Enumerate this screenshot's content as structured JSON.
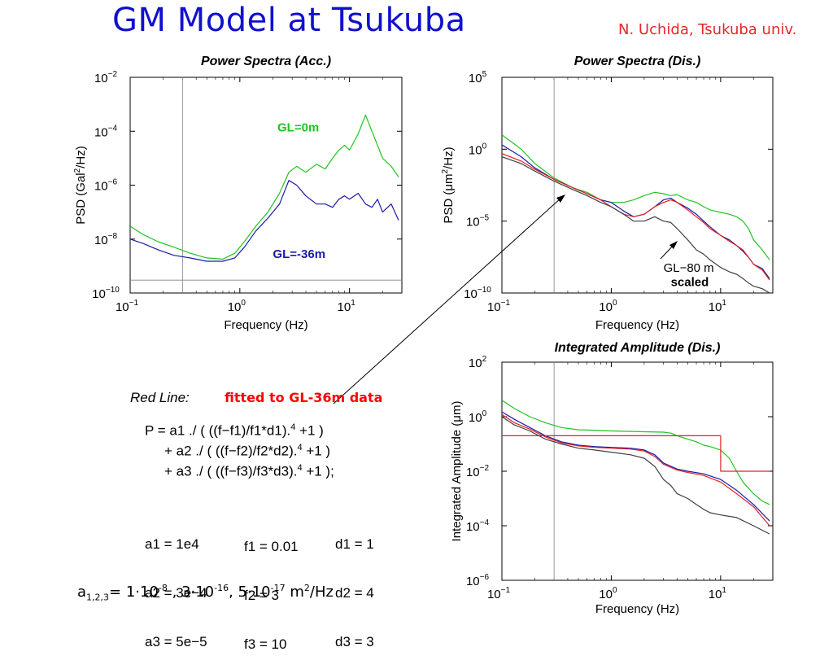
{
  "title": "GM Model at Tsukuba",
  "author": "N. Uchida, Tsukuba univ.",
  "colors": {
    "title": "#1010d0",
    "author": "#e8262a",
    "green": "#1ec51e",
    "blue": "#1a1aa8",
    "red": "#e82020",
    "gray": "#404040"
  },
  "chart_data": [
    {
      "type": "line",
      "title": "Power Spectra (Acc.)",
      "xlabel": "Frequency (Hz)",
      "ylabel_main": "PSD (Gal",
      "ylabel_sup": "2",
      "ylabel_tail": "/Hz)",
      "xscale": "log",
      "yscale": "log",
      "xlim": [
        0.1,
        30
      ],
      "ylim": [
        1e-10,
        0.01
      ],
      "xticks": [
        {
          "v": 0.1,
          "base": "10",
          "exp": "−1"
        },
        {
          "v": 1,
          "base": "10",
          "exp": "0"
        },
        {
          "v": 10,
          "base": "10",
          "exp": "1"
        }
      ],
      "yticks": [
        {
          "v": 1e-10,
          "base": "10",
          "exp": "−10"
        },
        {
          "v": 1e-08,
          "base": "10",
          "exp": "−8"
        },
        {
          "v": 1e-06,
          "base": "10",
          "exp": "−6"
        },
        {
          "v": 0.0001,
          "base": "10",
          "exp": "−4"
        },
        {
          "v": 0.01,
          "base": "10",
          "exp": "−2"
        }
      ],
      "vline_x": 0.3,
      "hline_y": 3e-10,
      "annotations": [
        {
          "text": "GL=0m",
          "x": 2.2,
          "y": 0.0001,
          "color": "#1ec51e"
        },
        {
          "text": "GL=-36m",
          "x": 2.0,
          "y": 2e-09,
          "color": "#1a1aa8"
        }
      ],
      "series": [
        {
          "label": "GL=0m",
          "color": "#1ec51e",
          "x": [
            0.1,
            0.13,
            0.18,
            0.25,
            0.35,
            0.5,
            0.7,
            0.9,
            1.1,
            1.4,
            1.8,
            2.3,
            2.8,
            3.3,
            4,
            5,
            6,
            7,
            8,
            9,
            10,
            12,
            14,
            16,
            18,
            20,
            24,
            28
          ],
          "y": [
            3e-08,
            1.5e-08,
            8e-09,
            5e-09,
            3e-09,
            2e-09,
            1.8e-09,
            3e-09,
            8e-09,
            3e-08,
            1e-07,
            5e-07,
            3e-06,
            5e-06,
            3e-06,
            6e-06,
            4e-06,
            1e-05,
            2e-05,
            3e-05,
            2e-05,
            8e-05,
            0.0004,
            0.0001,
            3e-05,
            1e-05,
            5e-06,
            2e-06
          ]
        },
        {
          "color": "#1a1aa8",
          "x": [
            0.1,
            0.13,
            0.18,
            0.25,
            0.35,
            0.5,
            0.7,
            0.9,
            1.1,
            1.4,
            1.8,
            2.3,
            2.8,
            3.3,
            4,
            5,
            6,
            7,
            8,
            9,
            10,
            12,
            14,
            16,
            18,
            20,
            24,
            28
          ],
          "y": [
            1e-08,
            7e-09,
            4e-09,
            2.5e-09,
            2e-09,
            1.5e-09,
            1.5e-09,
            2e-09,
            5e-09,
            2e-08,
            6e-08,
            2e-07,
            1.5e-06,
            1e-06,
            4e-07,
            2e-07,
            2e-07,
            1.5e-07,
            3e-07,
            4e-07,
            3e-07,
            5e-07,
            2e-07,
            1.5e-07,
            3e-07,
            1e-07,
            2e-07,
            5e-08
          ]
        }
      ]
    },
    {
      "type": "line",
      "title": "Power Spectra (Dis.)",
      "xlabel": "Frequency (Hz)",
      "ylabel_main": "PSD (μm",
      "ylabel_sup": "2",
      "ylabel_tail": "/Hz)",
      "xscale": "log",
      "yscale": "log",
      "xlim": [
        0.1,
        30
      ],
      "ylim": [
        1e-10,
        100000
      ],
      "xticks": [
        {
          "v": 0.1,
          "base": "10",
          "exp": "−1"
        },
        {
          "v": 1,
          "base": "10",
          "exp": "0"
        },
        {
          "v": 10,
          "base": "10",
          "exp": "1"
        }
      ],
      "yticks": [
        {
          "v": 1e-10,
          "base": "10",
          "exp": "−10"
        },
        {
          "v": 1e-05,
          "base": "10",
          "exp": "−5"
        },
        {
          "v": 1,
          "base": "10",
          "exp": "0"
        },
        {
          "v": 100000,
          "base": "10",
          "exp": "5"
        }
      ],
      "vline_x": 0.3,
      "annotations": [
        {
          "text": "GL−80 m",
          "x": 3.0,
          "y": 3e-09,
          "color": "#000000"
        },
        {
          "text": "scaled",
          "x": 3.5,
          "y": 3e-10,
          "color": "#000000"
        }
      ],
      "series": [
        {
          "color": "#1ec51e",
          "x": [
            0.1,
            0.15,
            0.2,
            0.3,
            0.45,
            0.6,
            0.8,
            1,
            1.3,
            1.6,
            2,
            2.5,
            3,
            3.5,
            4,
            5,
            6,
            7,
            8,
            10,
            12,
            14,
            16,
            18,
            20,
            24,
            28
          ],
          "y": [
            10,
            1,
            0.1,
            0.01,
            0.002,
            0.001,
            0.0003,
            0.0002,
            0.0002,
            0.0003,
            0.0006,
            0.001,
            0.0008,
            0.0006,
            0.0007,
            0.0003,
            0.0002,
            0.0001,
            6e-05,
            4e-05,
            3e-05,
            2e-05,
            1e-05,
            3e-06,
            5e-07,
            1e-07,
            2e-08
          ]
        },
        {
          "color": "#1a1aa8",
          "x": [
            0.1,
            0.15,
            0.2,
            0.3,
            0.45,
            0.6,
            0.8,
            1,
            1.3,
            1.6,
            2,
            2.5,
            3,
            3.5,
            4,
            5,
            6,
            7,
            8,
            10,
            12,
            14,
            16,
            18,
            20,
            24,
            28
          ],
          "y": [
            2,
            0.3,
            0.05,
            0.008,
            0.002,
            0.0008,
            0.0003,
            0.0002,
            5e-05,
            2e-05,
            3e-05,
            0.0001,
            0.0003,
            0.0004,
            0.0002,
            8e-05,
            3e-05,
            1e-05,
            4e-06,
            1e-06,
            5e-07,
            2e-07,
            8e-08,
            3e-08,
            1e-08,
            5e-09,
            1e-09
          ]
        },
        {
          "color": "#e82020",
          "x": [
            0.1,
            0.15,
            0.2,
            0.3,
            0.45,
            0.6,
            0.8,
            1,
            1.3,
            1.6,
            2,
            2.5,
            3,
            3.5,
            4,
            5,
            6,
            7,
            8,
            10,
            12,
            14,
            16,
            18,
            20,
            24,
            28
          ],
          "y": [
            0.5,
            0.15,
            0.04,
            0.008,
            0.002,
            0.0008,
            0.0003,
            0.0001,
            3e-05,
            2e-05,
            3e-05,
            0.0001,
            0.0002,
            0.0003,
            0.0002,
            6e-05,
            2e-05,
            8e-06,
            3e-06,
            1e-06,
            4e-07,
            2e-07,
            1e-07,
            3e-08,
            1e-08,
            4e-09,
            8e-10
          ]
        },
        {
          "color": "#404040",
          "x": [
            0.1,
            0.15,
            0.2,
            0.3,
            0.45,
            0.6,
            0.8,
            1,
            1.3,
            1.6,
            2,
            2.5,
            3,
            3.5,
            4,
            5,
            6,
            7,
            8,
            10,
            12,
            14,
            16,
            18,
            20,
            24,
            28
          ],
          "y": [
            0.3,
            0.1,
            0.03,
            0.006,
            0.0015,
            0.0006,
            0.0002,
            0.0001,
            3e-05,
            1e-05,
            1e-05,
            2e-05,
            1e-05,
            8e-06,
            3e-06,
            5e-07,
            1e-07,
            5e-08,
            2e-08,
            6e-09,
            3e-09,
            2e-09,
            1e-09,
            5e-10,
            3e-10,
            2e-10,
            1e-10
          ]
        }
      ]
    },
    {
      "type": "line",
      "title": "Integrated Amplitude (Dis.)",
      "xlabel": "Frequency (Hz)",
      "ylabel_main": "Integrated Amplitude (μm)",
      "ylabel_sup": "",
      "ylabel_tail": "",
      "xscale": "log",
      "yscale": "log",
      "xlim": [
        0.1,
        30
      ],
      "ylim": [
        1e-06,
        100
      ],
      "xticks": [
        {
          "v": 0.1,
          "base": "10",
          "exp": "−1"
        },
        {
          "v": 1,
          "base": "10",
          "exp": "0"
        },
        {
          "v": 10,
          "base": "10",
          "exp": "1"
        }
      ],
      "yticks": [
        {
          "v": 1e-06,
          "base": "10",
          "exp": "−6"
        },
        {
          "v": 0.0001,
          "base": "10",
          "exp": "−4"
        },
        {
          "v": 0.01,
          "base": "10",
          "exp": "−2"
        },
        {
          "v": 1,
          "base": "10",
          "exp": "0"
        },
        {
          "v": 100,
          "base": "10",
          "exp": "2"
        }
      ],
      "vline_x": 0.3,
      "annotations": [],
      "series": [
        {
          "color": "#1ec51e",
          "x": [
            0.1,
            0.13,
            0.18,
            0.25,
            0.35,
            0.5,
            0.7,
            1,
            2,
            3,
            3.5,
            4,
            5,
            6,
            7,
            8,
            10,
            12,
            14,
            16,
            20,
            24,
            28
          ],
          "y": [
            4,
            2,
            1,
            0.6,
            0.4,
            0.33,
            0.32,
            0.3,
            0.28,
            0.27,
            0.25,
            0.2,
            0.15,
            0.12,
            0.09,
            0.08,
            0.06,
            0.03,
            0.01,
            0.004,
            0.0015,
            0.0008,
            0.0006
          ]
        },
        {
          "color": "#1a1aa8",
          "x": [
            0.1,
            0.13,
            0.18,
            0.25,
            0.35,
            0.5,
            0.7,
            1,
            1.5,
            2,
            2.5,
            3,
            4,
            5,
            7,
            10,
            14,
            20,
            28
          ],
          "y": [
            1.5,
            0.8,
            0.4,
            0.2,
            0.12,
            0.09,
            0.08,
            0.075,
            0.07,
            0.06,
            0.04,
            0.02,
            0.012,
            0.01,
            0.008,
            0.005,
            0.002,
            0.0006,
            0.00015
          ]
        },
        {
          "color": "#e82020",
          "x": [
            0.1,
            0.13,
            0.18,
            0.25,
            0.35,
            0.5,
            0.7,
            1,
            1.5,
            2,
            2.5,
            3,
            4,
            5,
            7,
            10,
            14,
            20,
            28
          ],
          "y": [
            1.2,
            0.6,
            0.35,
            0.18,
            0.11,
            0.085,
            0.075,
            0.07,
            0.065,
            0.055,
            0.035,
            0.018,
            0.011,
            0.009,
            0.007,
            0.004,
            0.0015,
            0.0005,
            0.0001
          ]
        },
        {
          "color": "#e82020",
          "x": [
            0.1,
            10,
            10,
            28
          ],
          "y": [
            0.2,
            0.2,
            0.01,
            0.01
          ]
        },
        {
          "color": "#404040",
          "x": [
            0.1,
            0.13,
            0.18,
            0.25,
            0.35,
            0.5,
            0.7,
            1,
            1.5,
            2,
            2.5,
            3,
            3.5,
            4,
            5,
            6,
            7,
            8,
            10,
            14,
            20,
            28
          ],
          "y": [
            1,
            0.5,
            0.3,
            0.15,
            0.1,
            0.07,
            0.06,
            0.05,
            0.04,
            0.03,
            0.015,
            0.005,
            0.003,
            0.0015,
            0.001,
            0.0006,
            0.0004,
            0.0003,
            0.00025,
            0.0002,
            0.0001,
            5e-05
          ]
        }
      ]
    }
  ],
  "red_line_label": "Red Line:",
  "red_line_desc": "fitted to GL-36m data",
  "equation_lines": [
    "P = a1 ./ ( ((f−f1)/f1*d1).",
    "+ a2 ./ ( ((f−f2)/f2*d2).",
    "+ a3 ./ ( ((f−f3)/f3*d3)."
  ],
  "equation_exp": "4",
  "equation_tails": [
    " +1 )",
    " +1 )",
    " +1 );"
  ],
  "params": {
    "a": [
      "a1 = 1e4",
      "a2 = 3e−4",
      "a3 = 5e−5"
    ],
    "f": [
      "f1 = 0.01",
      "f2 = 3",
      "f3 = 10"
    ],
    "d": [
      "d1 = 1",
      "d2 = 4",
      "d3 = 3"
    ]
  },
  "amp_note": {
    "a": "a",
    "a_sub": "1,2,3",
    "eq": "= 1·10",
    "e1": "-8",
    "sep1": " , 3·10",
    "e2": "-16",
    "sep2": ", 5·10",
    "e3": "-17",
    "unit": "  m",
    "unit_sup": "2",
    "unit_tail": "/Hz"
  }
}
